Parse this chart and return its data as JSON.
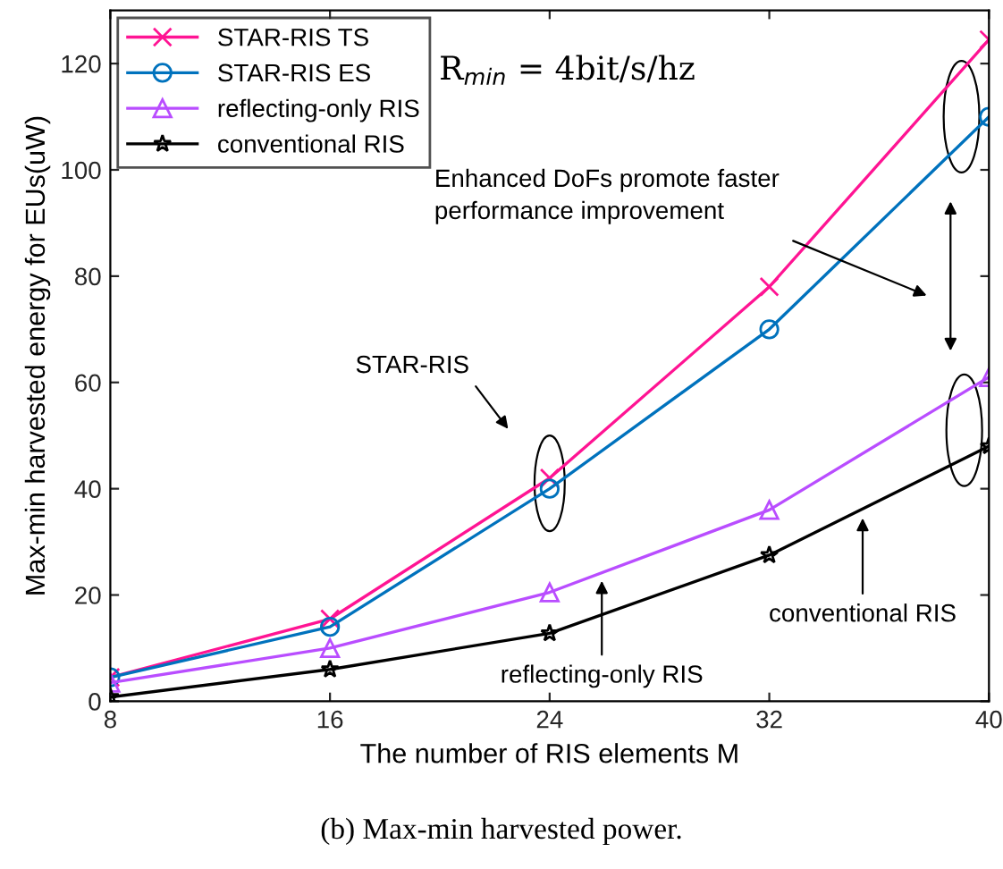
{
  "chart_data": {
    "type": "line",
    "xlabel": "The number of RIS elements M",
    "ylabel": "Max-min harvested energy for EUs(uW)",
    "x": [
      8,
      16,
      24,
      32,
      40
    ],
    "series": [
      {
        "name": "STAR-RIS TS",
        "color": "#ff1493",
        "marker": "cross",
        "values": [
          4.5,
          15.5,
          42,
          78,
          124.5
        ]
      },
      {
        "name": "STAR-RIS ES",
        "color": "#0072bd",
        "marker": "circle",
        "values": [
          4.5,
          14,
          40,
          70,
          110
        ]
      },
      {
        "name": "reflecting-only RIS",
        "color": "#b94dff",
        "marker": "triangle",
        "values": [
          3.5,
          10,
          20.5,
          36,
          61
        ]
      },
      {
        "name": "conventional RIS",
        "color": "#000000",
        "marker": "star",
        "values": [
          0.8,
          6,
          12.8,
          27.5,
          48
        ]
      }
    ],
    "xlim": [
      8,
      40
    ],
    "xticks": [
      8,
      16,
      24,
      32,
      40
    ],
    "ylim": [
      0,
      130
    ],
    "yticks": [
      0,
      20,
      40,
      60,
      80,
      100,
      120
    ],
    "grid": false,
    "legend": "top left",
    "annotations": [
      "R$_{min}$ = 4bit/s/hz",
      "STAR-RIS",
      "Enhanced DoFs promote faster\nperformance improvement",
      {
        "text": "reflecting-only RIS",
        "x": 25.9,
        "y": 23.6
      },
      {
        "text": "conventional RIS",
        "x": 35.4,
        "y": 35.4
      },
      "(b) Max-min harvested power."
    ]
  }
}
